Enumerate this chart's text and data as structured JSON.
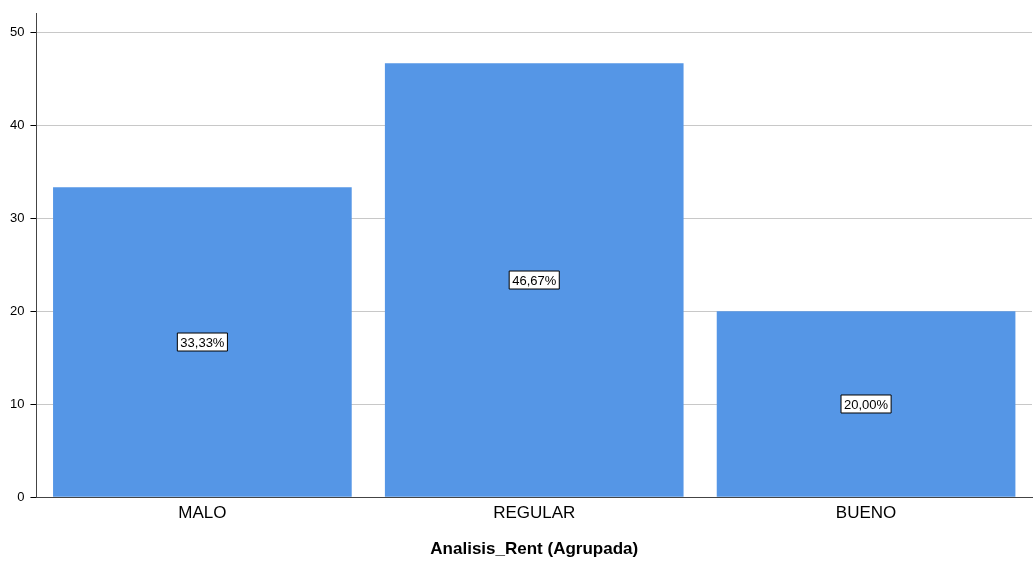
{
  "chart_data": {
    "type": "bar",
    "xlabel": "Analisis_Rent (Agrupada)",
    "categories": [
      "MALO",
      "REGULAR",
      "BUENO"
    ],
    "values": [
      33.33,
      46.67,
      20.0
    ],
    "value_labels": [
      "33,33%",
      "46,67%",
      "20,00%"
    ],
    "color": "#5596e6",
    "ylim": [
      0,
      52
    ],
    "yticks": [
      0,
      10,
      20,
      30,
      40,
      50
    ],
    "grid": "y",
    "legend": false
  }
}
